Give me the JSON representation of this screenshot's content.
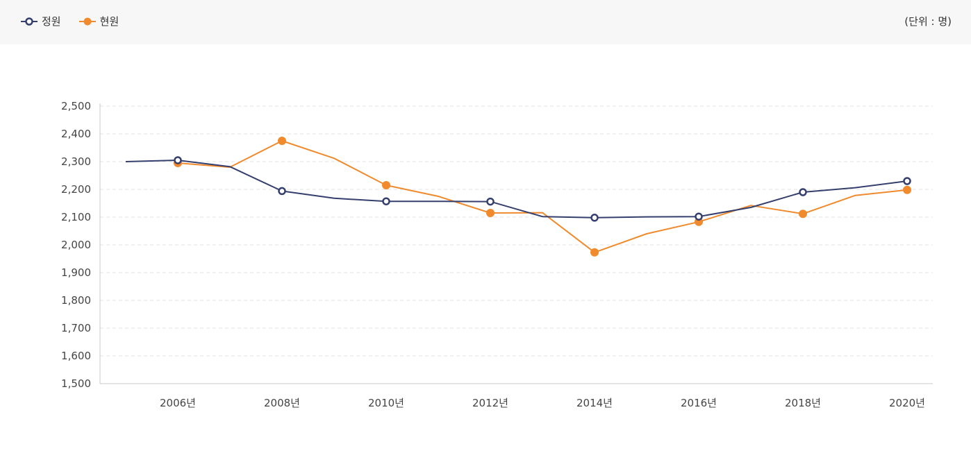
{
  "legend": {
    "items": [
      {
        "label": "정원",
        "color": "#343f6e",
        "marker": "hollow-circle"
      },
      {
        "label": "현원",
        "color": "#f08a2c",
        "marker": "filled-circle"
      }
    ]
  },
  "unit": "(단위 : 명)",
  "chart_data": {
    "type": "line",
    "title": "",
    "xlabel": "",
    "ylabel": "",
    "ylim": [
      1500,
      2500
    ],
    "y_ticks": [
      "1,500",
      "1,600",
      "1,700",
      "1,800",
      "1,900",
      "2,000",
      "2,100",
      "2,200",
      "2,300",
      "2,400",
      "2,500"
    ],
    "x_tick_labels": [
      "2006년",
      "2008년",
      "2010년",
      "2012년",
      "2014년",
      "2016년",
      "2018년",
      "2020년"
    ],
    "x": [
      2005,
      2006,
      2007,
      2008,
      2009,
      2010,
      2011,
      2012,
      2013,
      2014,
      2015,
      2016,
      2017,
      2018,
      2019,
      2020
    ],
    "grid": true,
    "legend_position": "top-left",
    "series": [
      {
        "name": "정원",
        "color": "#343f6e",
        "marker": "hollow-circle",
        "values": [
          2300,
          2305,
          2282,
          2194,
          2168,
          2157,
          2157,
          2156,
          2102,
          2098,
          2101,
          2102,
          2135,
          2190,
          2206,
          2230
        ]
      },
      {
        "name": "현원",
        "color": "#f08a2c",
        "marker": "filled-circle",
        "values": [
          null,
          2295,
          2280,
          2375,
          2312,
          2215,
          2175,
          2115,
          2116,
          1973,
          2040,
          2083,
          2142,
          2112,
          2178,
          2198
        ]
      }
    ]
  }
}
